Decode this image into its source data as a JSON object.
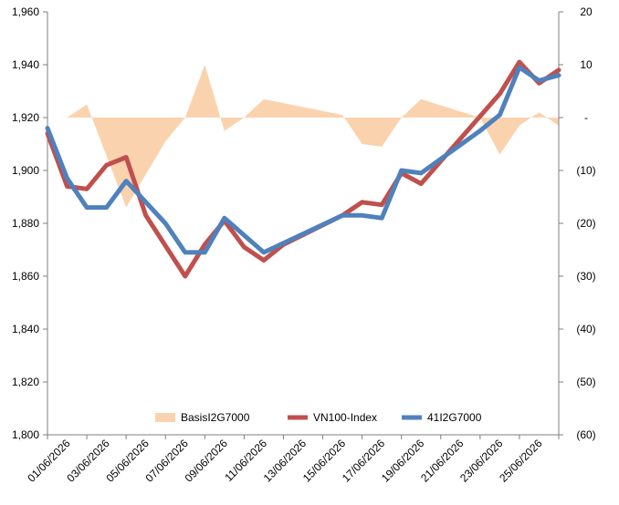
{
  "chart_data": {
    "type": "line",
    "x_dates": [
      "31/05/2026",
      "01/06/2026",
      "02/06/2026",
      "03/06/2026",
      "04/06/2026",
      "05/06/2026",
      "06/06/2026",
      "07/06/2026",
      "08/06/2026",
      "09/06/2026",
      "10/06/2026",
      "11/06/2026",
      "12/06/2026",
      "13/06/2026",
      "14/06/2026",
      "15/06/2026",
      "16/06/2026",
      "17/06/2026",
      "18/06/2026",
      "19/06/2026",
      "20/06/2026",
      "21/06/2026",
      "22/06/2026",
      "23/06/2026",
      "24/06/2026",
      "25/06/2026",
      "26/06/2026"
    ],
    "x_tick_labels": [
      "01/06/2026",
      "03/06/2026",
      "05/06/2026",
      "07/06/2026",
      "09/06/2026",
      "11/06/2026",
      "13/06/2026",
      "15/06/2026",
      "17/06/2026",
      "19/06/2026",
      "21/06/2026",
      "23/06/2026",
      "25/06/2026"
    ],
    "y_left": {
      "min": 1800,
      "max": 1960,
      "step": 20,
      "tick_labels": [
        "1,800",
        "1,820",
        "1,840",
        "1,860",
        "1,880",
        "1,900",
        "1,920",
        "1,940",
        "1,960"
      ]
    },
    "y_right": {
      "min": -60,
      "max": 20,
      "step": 10,
      "tick_labels": [
        "(60)",
        "(50)",
        "(40)",
        "(30)",
        "(20)",
        "(10)",
        "-",
        "10",
        "20"
      ]
    },
    "grid": false,
    "legend_position": "bottom",
    "series": [
      {
        "name": "BasisI2G7000",
        "type": "area",
        "axis": "right",
        "color": "#FAD3AE",
        "x": [
          "01/06/2026",
          "01/06/2026",
          "02/06/2026",
          "04/06/2026",
          "06/06/2026",
          "07/06/2026",
          "08/06/2026",
          "09/06/2026",
          "10/06/2026",
          "11/06/2026",
          "15/06/2026",
          "16/06/2026",
          "17/06/2026",
          "18/06/2026",
          "19/06/2026",
          "22/06/2026",
          "23/06/2026",
          "24/06/2026",
          "25/06/2026",
          "26/06/2026"
        ],
        "values": [
          0,
          0,
          2.5,
          -17,
          -4.5,
          0,
          10,
          -2.5,
          0,
          3.5,
          0.5,
          -5,
          -5.5,
          0,
          3.5,
          0,
          -7,
          -1.5,
          1,
          -1.5
        ]
      },
      {
        "name": "VN100-Index",
        "type": "line",
        "axis": "left",
        "color": "#C0504D",
        "x": [
          "31/05/2026",
          "01/06/2026",
          "02/06/2026",
          "03/06/2026",
          "04/06/2026",
          "05/06/2026",
          "07/06/2026",
          "08/06/2026",
          "09/06/2026",
          "10/06/2026",
          "11/06/2026",
          "12/06/2026",
          "15/06/2026",
          "16/06/2026",
          "17/06/2026",
          "18/06/2026",
          "19/06/2026",
          "23/06/2026",
          "24/06/2026",
          "25/06/2026",
          "26/06/2026"
        ],
        "values": [
          1914,
          1894,
          1893,
          1902,
          1905,
          1883,
          1860,
          1872,
          1881,
          1871,
          1866,
          1872,
          1883,
          1888,
          1887,
          1899,
          1895,
          1929,
          1941,
          1933,
          1938
        ]
      },
      {
        "name": "41I2G7000",
        "type": "line",
        "axis": "left",
        "color": "#4F81BD",
        "x": [
          "31/05/2026",
          "01/06/2026",
          "02/06/2026",
          "03/06/2026",
          "04/06/2026",
          "06/06/2026",
          "07/06/2026",
          "08/06/2026",
          "09/06/2026",
          "11/06/2026",
          "15/06/2026",
          "16/06/2026",
          "17/06/2026",
          "18/06/2026",
          "19/06/2026",
          "22/06/2026",
          "23/06/2026",
          "24/06/2026",
          "25/06/2026",
          "26/06/2026"
        ],
        "values": [
          1916,
          1897,
          1886,
          1886,
          1896,
          1880,
          1869,
          1869,
          1882,
          1869,
          1883,
          1883,
          1882,
          1900,
          1899,
          1915,
          1921,
          1939,
          1934,
          1936
        ]
      }
    ]
  }
}
